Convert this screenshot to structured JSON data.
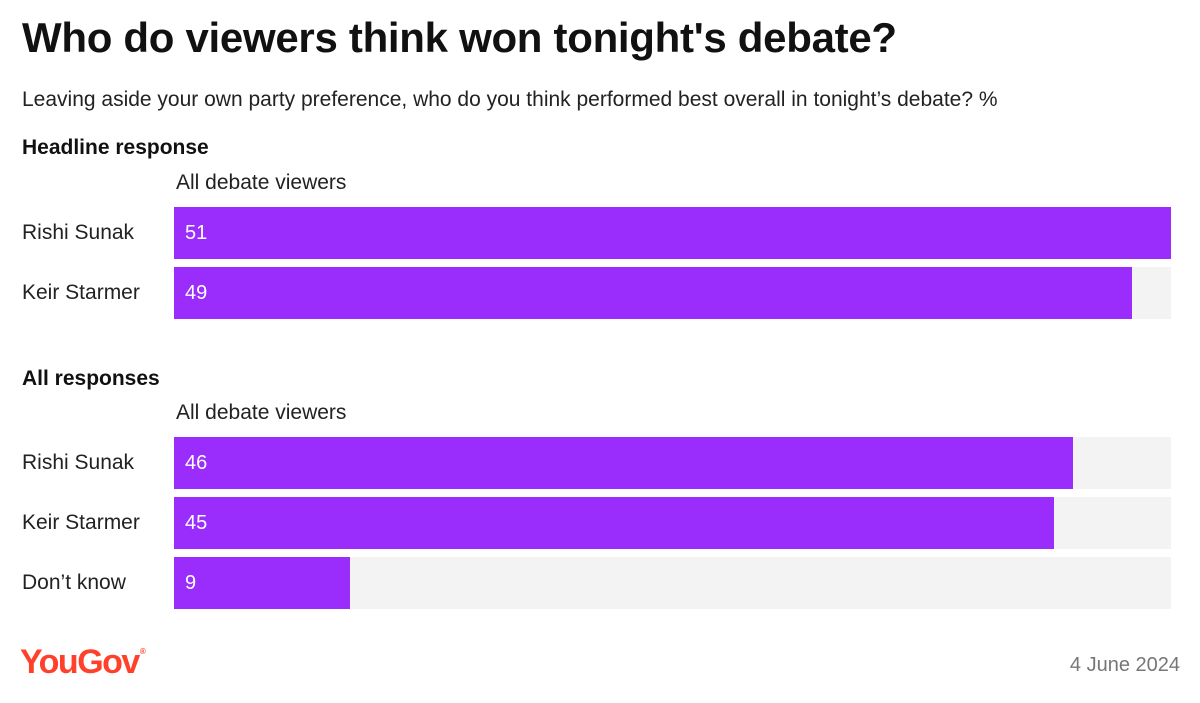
{
  "title": "Who do viewers think won tonight's debate?",
  "subtitle": "Leaving aside your own party preference, who do you think performed best overall in tonight’s debate? %",
  "brand": {
    "name": "YouGov",
    "color": "#ff412c"
  },
  "date": "4 June 2024",
  "colors": {
    "bar": "#9a2cfc",
    "track": "#f3f3f3"
  },
  "chart_data": [
    {
      "type": "bar",
      "orientation": "horizontal",
      "title": "Headline response",
      "series": [
        {
          "name": "All debate viewers",
          "values": [
            51,
            49
          ]
        }
      ],
      "categories": [
        "Rishi Sunak",
        "Keir Starmer"
      ],
      "xlim": [
        0,
        51
      ],
      "unit": "%"
    },
    {
      "type": "bar",
      "orientation": "horizontal",
      "title": "All responses",
      "series": [
        {
          "name": "All debate viewers",
          "values": [
            46,
            45,
            9
          ]
        }
      ],
      "categories": [
        "Rishi Sunak",
        "Keir Starmer",
        "Don’t know"
      ],
      "xlim": [
        0,
        51
      ],
      "unit": "%"
    }
  ]
}
